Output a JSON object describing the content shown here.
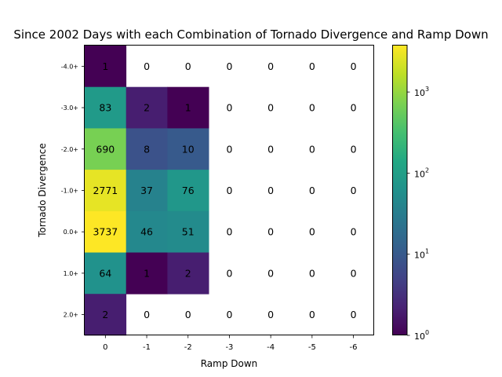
{
  "chart_data": {
    "type": "heatmap",
    "title": "Since 2002 Days with each Combination of Tornado Divergence and Ramp Down",
    "xlabel": "Ramp Down",
    "ylabel": "Tornado Divergence",
    "x_categories": [
      "0",
      "-1",
      "-2",
      "-3",
      "-4",
      "-5",
      "-6"
    ],
    "y_categories": [
      "-4.0+",
      "-3.0+",
      "-2.0+",
      "-1.0+",
      "0.0+",
      "1.0+",
      "2.0+"
    ],
    "values": [
      [
        1,
        0,
        0,
        0,
        0,
        0,
        0
      ],
      [
        83,
        2,
        1,
        0,
        0,
        0,
        0
      ],
      [
        690,
        8,
        10,
        0,
        0,
        0,
        0
      ],
      [
        2771,
        37,
        76,
        0,
        0,
        0,
        0
      ],
      [
        3737,
        46,
        51,
        0,
        0,
        0,
        0
      ],
      [
        64,
        1,
        2,
        0,
        0,
        0,
        0
      ],
      [
        2,
        0,
        0,
        0,
        0,
        0,
        0
      ]
    ],
    "zero_cells_color": "#ffffff",
    "colormap": "viridis",
    "color_scale": "log",
    "clim": [
      1,
      3737
    ],
    "colorbar_ticks": [
      {
        "value": 1,
        "base": "10",
        "exp": "0"
      },
      {
        "value": 10,
        "base": "10",
        "exp": "1"
      },
      {
        "value": 100,
        "base": "10",
        "exp": "2"
      },
      {
        "value": 1000,
        "base": "10",
        "exp": "3"
      }
    ]
  }
}
